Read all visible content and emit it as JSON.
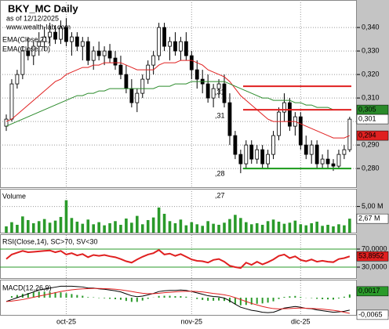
{
  "chart_data": [
    {
      "type": "candlestick",
      "title": "BKY_MC Daily",
      "subtitle": "as of 12/12/2025",
      "source": "www.wealth-lab.com",
      "categories": [
        null,
        null,
        null,
        null,
        null,
        null,
        null,
        null,
        null,
        null,
        null,
        "oct-25",
        null,
        null,
        null,
        null,
        null,
        null,
        null,
        null,
        null,
        null,
        null,
        null,
        null,
        null,
        null,
        null,
        null,
        null,
        null,
        null,
        null,
        null,
        "nov-25",
        null,
        null,
        null,
        null,
        null,
        null,
        null,
        null,
        null,
        null,
        null,
        null,
        null,
        null,
        null,
        null,
        null,
        null,
        null,
        "dic-25",
        null,
        null,
        null,
        null,
        null,
        null,
        null,
        null,
        null
      ],
      "open": [
        0.298,
        0.301,
        0.316,
        0.32,
        0.33,
        0.328,
        0.332,
        0.334,
        0.336,
        0.338,
        0.335,
        0.34,
        0.334,
        0.336,
        0.332,
        0.334,
        0.326,
        0.33,
        0.328,
        0.33,
        0.327,
        0.324,
        0.32,
        0.314,
        0.308,
        0.312,
        0.318,
        0.324,
        0.328,
        0.34,
        0.332,
        0.334,
        0.33,
        0.334,
        0.328,
        0.322,
        0.318,
        0.316,
        0.31,
        0.314,
        0.316,
        0.308,
        0.294,
        0.286,
        0.282,
        0.29,
        0.284,
        0.288,
        0.282,
        0.286,
        0.294,
        0.304,
        0.308,
        0.298,
        0.302,
        0.29,
        0.286,
        0.29,
        0.282,
        0.284,
        0.282,
        0.281,
        0.286,
        0.288
      ],
      "high": [
        0.303,
        0.318,
        0.322,
        0.332,
        0.336,
        0.334,
        0.338,
        0.34,
        0.342,
        0.341,
        0.343,
        0.344,
        0.338,
        0.338,
        0.336,
        0.336,
        0.332,
        0.334,
        0.332,
        0.333,
        0.33,
        0.328,
        0.324,
        0.318,
        0.314,
        0.32,
        0.326,
        0.33,
        0.342,
        0.342,
        0.336,
        0.338,
        0.336,
        0.338,
        0.33,
        0.326,
        0.322,
        0.32,
        0.316,
        0.318,
        0.32,
        0.312,
        0.296,
        0.288,
        0.292,
        0.292,
        0.29,
        0.29,
        0.288,
        0.296,
        0.306,
        0.312,
        0.31,
        0.304,
        0.304,
        0.294,
        0.292,
        0.292,
        0.286,
        0.288,
        0.284,
        0.288,
        0.29,
        0.302
      ],
      "low": [
        0.296,
        0.3,
        0.314,
        0.318,
        0.326,
        0.324,
        0.328,
        0.33,
        0.332,
        0.333,
        0.333,
        0.332,
        0.328,
        0.33,
        0.326,
        0.324,
        0.322,
        0.326,
        0.324,
        0.325,
        0.322,
        0.318,
        0.312,
        0.306,
        0.304,
        0.31,
        0.316,
        0.32,
        0.326,
        0.33,
        0.326,
        0.328,
        0.326,
        0.326,
        0.318,
        0.314,
        0.312,
        0.308,
        0.306,
        0.31,
        0.306,
        0.29,
        0.284,
        0.278,
        0.28,
        0.282,
        0.282,
        0.28,
        0.28,
        0.284,
        0.292,
        0.3,
        0.296,
        0.294,
        0.288,
        0.284,
        0.282,
        0.28,
        0.28,
        0.28,
        0.279,
        0.28,
        0.284,
        0.287
      ],
      "close": [
        0.301,
        0.316,
        0.32,
        0.33,
        0.328,
        0.332,
        0.334,
        0.336,
        0.338,
        0.335,
        0.34,
        0.334,
        0.336,
        0.332,
        0.334,
        0.326,
        0.33,
        0.328,
        0.33,
        0.327,
        0.324,
        0.32,
        0.314,
        0.308,
        0.312,
        0.318,
        0.324,
        0.328,
        0.34,
        0.332,
        0.334,
        0.33,
        0.334,
        0.328,
        0.322,
        0.318,
        0.316,
        0.31,
        0.314,
        0.316,
        0.308,
        0.294,
        0.286,
        0.282,
        0.29,
        0.284,
        0.288,
        0.282,
        0.286,
        0.294,
        0.304,
        0.308,
        0.298,
        0.302,
        0.29,
        0.286,
        0.29,
        0.282,
        0.284,
        0.282,
        0.281,
        0.286,
        0.288,
        0.301
      ],
      "close_label": "0,301",
      "up_color": "#ffffff",
      "down_color": "#000000",
      "series": [
        {
          "name": "EMA(Close,21)",
          "color": "#e02020",
          "last_label": "0,294",
          "values": [
            0.3,
            0.301,
            0.303,
            0.305,
            0.307,
            0.309,
            0.311,
            0.313,
            0.315,
            0.317,
            0.318,
            0.32,
            0.321,
            0.322,
            0.323,
            0.323,
            0.324,
            0.324,
            0.325,
            0.325,
            0.325,
            0.325,
            0.324,
            0.323,
            0.322,
            0.322,
            0.322,
            0.322,
            0.324,
            0.325,
            0.325,
            0.325,
            0.326,
            0.326,
            0.326,
            0.325,
            0.324,
            0.322,
            0.321,
            0.32,
            0.319,
            0.317,
            0.314,
            0.311,
            0.309,
            0.307,
            0.305,
            0.303,
            0.301,
            0.3,
            0.3,
            0.3,
            0.3,
            0.3,
            0.299,
            0.298,
            0.297,
            0.296,
            0.295,
            0.294,
            0.293,
            0.293,
            0.293,
            0.294
          ]
        },
        {
          "name": "EMA(Close,70)",
          "color": "#2a8a2a",
          "last_label": "0,305",
          "values": [
            0.298,
            0.299,
            0.3,
            0.301,
            0.302,
            0.303,
            0.304,
            0.305,
            0.306,
            0.307,
            0.308,
            0.309,
            0.31,
            0.311,
            0.311,
            0.312,
            0.312,
            0.313,
            0.313,
            0.314,
            0.314,
            0.314,
            0.314,
            0.314,
            0.314,
            0.314,
            0.314,
            0.314,
            0.315,
            0.315,
            0.315,
            0.316,
            0.316,
            0.316,
            0.317,
            0.317,
            0.317,
            0.317,
            0.317,
            0.317,
            0.317,
            0.316,
            0.315,
            0.314,
            0.313,
            0.312,
            0.311,
            0.31,
            0.31,
            0.309,
            0.309,
            0.309,
            0.309,
            0.308,
            0.308,
            0.307,
            0.307,
            0.306,
            0.306,
            0.306,
            0.305,
            0.305,
            0.305,
            0.305
          ]
        }
      ],
      "levels": [
        {
          "value": 0.315,
          "color": "#e02020"
        },
        {
          "value": 0.305,
          "color": "#e02020"
        },
        {
          "value": 0.28,
          "color": "#1a9a1a"
        }
      ],
      "annotations": [
        ",31",
        ",31",
        ",28",
        ",27"
      ],
      "ylim": [
        0.2717,
        0.3517
      ],
      "yticks": [
        {
          "value": 0.34,
          "label": "0,340"
        },
        {
          "value": 0.33,
          "label": "0,330"
        },
        {
          "value": 0.32,
          "label": "0,320"
        },
        {
          "value": 0.31,
          "label": "0,310"
        },
        {
          "value": 0.3,
          "label": "0,300"
        },
        {
          "value": 0.29,
          "label": "0,290"
        },
        {
          "value": 0.28,
          "label": "0,280"
        }
      ],
      "grid": true
    },
    {
      "type": "bar",
      "title": "Volume",
      "color": "#2a9a2a",
      "last_label": "2,67 M",
      "values": [
        1.2,
        2.0,
        1.5,
        3.1,
        2.4,
        1.8,
        2.2,
        2.6,
        1.9,
        2.3,
        3.0,
        6.2,
        2.8,
        2.1,
        1.7,
        2.5,
        1.6,
        2.0,
        1.4,
        1.8,
        2.2,
        1.5,
        2.7,
        1.9,
        3.2,
        1.6,
        2.4,
        2.9,
        4.8,
        3.6,
        2.2,
        1.8,
        2.5,
        1.4,
        2.0,
        1.6,
        1.3,
        2.2,
        1.7,
        1.5,
        1.9,
        2.6,
        3.4,
        2.8,
        2.0,
        1.6,
        1.8,
        1.5,
        2.2,
        2.5,
        2.1,
        1.7,
        1.9,
        2.3,
        1.6,
        1.4,
        1.8,
        2.1,
        1.3,
        1.5,
        1.2,
        1.6,
        1.4,
        2.67
      ],
      "ylim": [
        0,
        8.38
      ],
      "yticks": [
        {
          "value": 5,
          "label": "5,00 M"
        }
      ],
      "grid": true
    },
    {
      "type": "line",
      "title": "RSI(Close,14), SC>70, SV<30",
      "series": [
        {
          "color": "#e02020",
          "last_label": "53,8952",
          "values": [
            48,
            58,
            62,
            66,
            63,
            64,
            65,
            66,
            67,
            63,
            66,
            58,
            61,
            56,
            59,
            52,
            57,
            55,
            57,
            54,
            52,
            48,
            43,
            40,
            47,
            53,
            58,
            61,
            68,
            58,
            60,
            55,
            59,
            53,
            47,
            44,
            43,
            40,
            46,
            48,
            42,
            33,
            30,
            28,
            40,
            35,
            42,
            36,
            41,
            47,
            55,
            58,
            50,
            54,
            46,
            43,
            47,
            42,
            44,
            42,
            41,
            48,
            50,
            53.8952
          ]
        }
      ],
      "ylim": [
        5.65,
        101.3
      ],
      "yticks": [
        {
          "value": 70,
          "label": "70,0000"
        },
        {
          "value": 30,
          "label": "30,0000"
        }
      ],
      "tick_color": "#2a9a2a"
    },
    {
      "type": "macd",
      "title": "MACD(12,26,9)",
      "series": [
        {
          "color": "#000000",
          "last_label": "-0,0065",
          "values": [
            -0.002,
            -0.001,
            0.0,
            0.001,
            0.002,
            0.003,
            0.004,
            0.0045,
            0.005,
            0.0055,
            0.006,
            0.006,
            0.006,
            0.0058,
            0.0056,
            0.005,
            0.005,
            0.0046,
            0.0044,
            0.004,
            0.0036,
            0.003,
            0.002,
            0.001,
            0.0005,
            0.0008,
            0.0015,
            0.0022,
            0.0032,
            0.0036,
            0.0038,
            0.0038,
            0.004,
            0.0038,
            0.0032,
            0.0025,
            0.0018,
            0.001,
            0.0006,
            0.0004,
            -0.0002,
            -0.0016,
            -0.0034,
            -0.005,
            -0.0058,
            -0.0066,
            -0.007,
            -0.0076,
            -0.0078,
            -0.0076,
            -0.0066,
            -0.0054,
            -0.005,
            -0.0046,
            -0.005,
            -0.0056,
            -0.0058,
            -0.0064,
            -0.0068,
            -0.0072,
            -0.0076,
            -0.0074,
            -0.0071,
            -0.0065
          ]
        },
        {
          "color": "#e02020",
          "values": [
            -0.002,
            -0.0018,
            -0.0014,
            -0.001,
            -0.0004,
            0.0002,
            0.0008,
            0.0014,
            0.002,
            0.0026,
            0.0032,
            0.0037,
            0.0041,
            0.0044,
            0.0046,
            0.0047,
            0.0048,
            0.0048,
            0.0047,
            0.0046,
            0.0044,
            0.0041,
            0.0037,
            0.0032,
            0.0027,
            0.0023,
            0.0021,
            0.0021,
            0.0023,
            0.0026,
            0.0028,
            0.003,
            0.0032,
            0.0033,
            0.0033,
            0.0032,
            0.003,
            0.0026,
            0.0022,
            0.0019,
            0.0015,
            0.0009,
            0.0,
            -0.001,
            -0.002,
            -0.003,
            -0.0038,
            -0.0046,
            -0.0052,
            -0.0057,
            -0.0059,
            -0.0058,
            -0.0057,
            -0.0055,
            -0.0054,
            -0.0055,
            -0.0056,
            -0.0058,
            -0.006,
            -0.0063,
            -0.0066,
            -0.007,
            -0.0076,
            -0.0082
          ]
        }
      ],
      "histogram": {
        "color": "#2a9a2a",
        "last_label": "0,0017",
        "values": [
          0,
          0.0008,
          0.0014,
          0.002,
          0.0024,
          0.0028,
          0.0032,
          0.0031,
          0.003,
          0.0029,
          0.0028,
          0.0023,
          0.0019,
          0.0014,
          0.001,
          0.0003,
          0.0002,
          -0.0002,
          -0.0003,
          -0.0006,
          -0.0008,
          -0.0011,
          -0.0017,
          -0.0022,
          -0.0022,
          -0.0015,
          -0.0006,
          0.0001,
          0.0009,
          0.001,
          0.001,
          0.0008,
          0.0008,
          0.0005,
          -0.0001,
          -0.0007,
          -0.0012,
          -0.0016,
          -0.0016,
          -0.0015,
          -0.0017,
          -0.0025,
          -0.0034,
          -0.004,
          -0.0038,
          -0.0036,
          -0.0032,
          -0.003,
          -0.0026,
          -0.0019,
          -0.0007,
          0.0004,
          0.0007,
          0.0009,
          0.0004,
          -0.0001,
          -0.0002,
          -0.0006,
          -0.0008,
          -0.0009,
          -0.001,
          -0.0004,
          0.0005,
          0.0017
        ]
      },
      "ylim": [
        -0.009,
        0.009
      ]
    }
  ]
}
